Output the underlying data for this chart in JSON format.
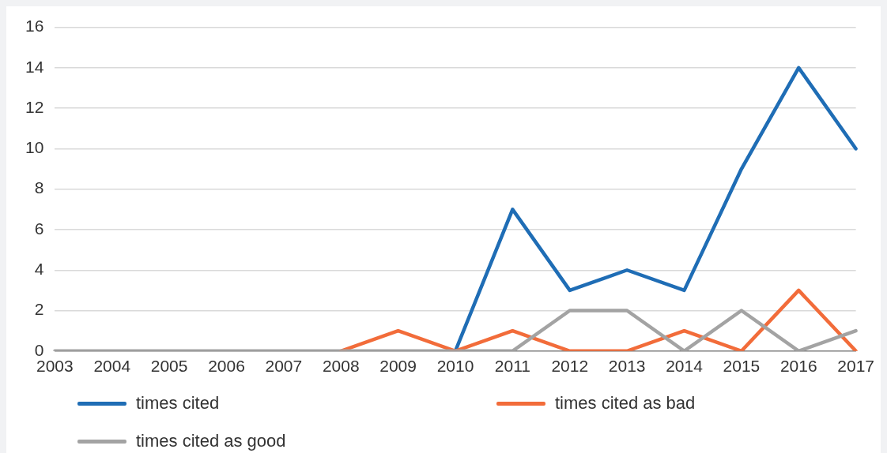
{
  "chart_data": {
    "type": "line",
    "categories": [
      "2003",
      "2004",
      "2005",
      "2006",
      "2007",
      "2008",
      "2009",
      "2010",
      "2011",
      "2012",
      "2013",
      "2014",
      "2015",
      "2016",
      "2017"
    ],
    "series": [
      {
        "name": "times cited",
        "color": "#1f6db5",
        "values": [
          null,
          null,
          null,
          null,
          null,
          null,
          null,
          0,
          7,
          3,
          4,
          3,
          9,
          14,
          10
        ]
      },
      {
        "name": "times cited as bad",
        "color": "#f26c3a",
        "values": [
          null,
          null,
          null,
          null,
          null,
          0,
          1,
          0,
          1,
          0,
          0,
          1,
          0,
          3,
          0
        ]
      },
      {
        "name": "times cited as good",
        "color": "#a3a3a3",
        "values": [
          0,
          0,
          0,
          0,
          0,
          0,
          0,
          0,
          0,
          2,
          2,
          0,
          2,
          0,
          1
        ]
      }
    ],
    "ylim": [
      0,
      16
    ],
    "yticks": [
      0,
      2,
      4,
      6,
      8,
      10,
      12,
      14,
      16
    ],
    "grid": "y",
    "legend": "bottom",
    "marker": "none",
    "line_style": "solid"
  }
}
